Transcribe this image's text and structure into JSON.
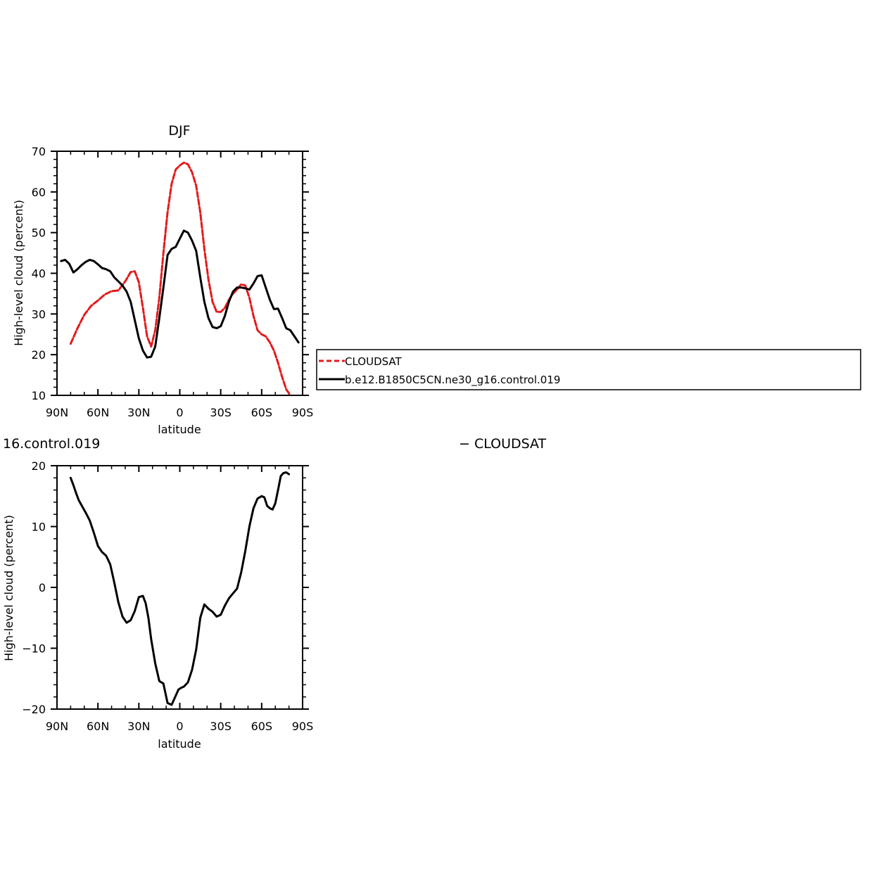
{
  "chart_data": [
    {
      "type": "line",
      "title": "DJF",
      "xlabel": "latitude",
      "ylabel": "High-level cloud (percent)",
      "xlim": [
        90,
        -90
      ],
      "ylim": [
        10,
        70
      ],
      "xticks": [
        90,
        60,
        30,
        0,
        -30,
        -60,
        -90
      ],
      "xtick_labels": [
        "90N",
        "60N",
        "30N",
        "0",
        "30S",
        "60S",
        "90S"
      ],
      "yticks": [
        10,
        20,
        30,
        40,
        50,
        60,
        70
      ],
      "ytick_labels": [
        "10",
        "20",
        "30",
        "40",
        "50",
        "60",
        "70"
      ],
      "series": [
        {
          "name": "CLOUDSAT",
          "color": "#e41a1c",
          "dash": "dashed",
          "x": [
            80,
            75,
            70,
            65,
            60,
            55,
            50,
            45,
            40,
            36,
            33,
            30,
            27,
            24,
            21,
            18,
            15,
            12,
            9,
            6,
            3,
            0,
            -3,
            -6,
            -9,
            -12,
            -15,
            -18,
            -21,
            -24,
            -27,
            -30,
            -33,
            -36,
            -39,
            -42,
            -45,
            -48,
            -51,
            -54,
            -57,
            -60,
            -63,
            -66,
            -69,
            -72,
            -75,
            -78,
            -81
          ],
          "values": [
            22.7,
            26.5,
            29.8,
            32.0,
            33.3,
            34.8,
            35.6,
            35.8,
            38.0,
            40.3,
            40.5,
            37.8,
            31.5,
            24.5,
            22.0,
            26.0,
            34.0,
            45.0,
            55.0,
            62.0,
            65.5,
            66.5,
            67.2,
            66.8,
            64.8,
            61.5,
            55.0,
            46.0,
            38.5,
            33.0,
            30.5,
            30.5,
            31.5,
            33.5,
            35.0,
            36.0,
            37.3,
            37.0,
            34.0,
            29.5,
            26.0,
            25.0,
            24.5,
            23.0,
            21.0,
            18.0,
            14.5,
            11.5,
            9.5
          ]
        },
        {
          "name": "b.e12.B1850C5CN.ne30_g16.control.019",
          "color": "#000000",
          "dash": "solid",
          "x": [
            87,
            84,
            81,
            78,
            75,
            72,
            69,
            66,
            63,
            60,
            57,
            54,
            51,
            48,
            45,
            42,
            39,
            36,
            33,
            30,
            27,
            24,
            21,
            18,
            15,
            12,
            9,
            6,
            3,
            0,
            -3,
            -6,
            -9,
            -12,
            -15,
            -18,
            -21,
            -24,
            -27,
            -30,
            -33,
            -36,
            -39,
            -42,
            -45,
            -48,
            -51,
            -54,
            -57,
            -60,
            -63,
            -66,
            -69,
            -72,
            -75,
            -78,
            -81,
            -84,
            -87
          ],
          "values": [
            43.0,
            43.3,
            42.3,
            40.2,
            41.0,
            42.0,
            42.8,
            43.3,
            43.0,
            42.2,
            41.3,
            41.0,
            40.5,
            39.0,
            38.0,
            37.0,
            35.5,
            33.0,
            28.5,
            24.0,
            21.0,
            19.3,
            19.5,
            22.0,
            29.0,
            36.5,
            44.5,
            46.0,
            46.5,
            48.5,
            50.5,
            50.0,
            48.0,
            45.5,
            39.0,
            33.0,
            29.0,
            26.8,
            26.5,
            27.0,
            29.5,
            33.0,
            35.5,
            36.5,
            36.5,
            36.3,
            36.0,
            37.5,
            39.3,
            39.5,
            36.5,
            33.5,
            31.2,
            31.3,
            29.0,
            26.5,
            26.0,
            24.5,
            23.0
          ]
        }
      ],
      "legend": {
        "placement": "right",
        "entries": [
          "CLOUDSAT",
          "b.e12.B1850C5CN.ne30_g16.control.019"
        ]
      }
    },
    {
      "type": "line",
      "title": "16.control.019",
      "title_right": "− CLOUDSAT",
      "xlabel": "latitude",
      "ylabel": "High-level cloud (percent)",
      "xlim": [
        90,
        -90
      ],
      "ylim": [
        -20,
        20
      ],
      "xticks": [
        90,
        60,
        30,
        0,
        -30,
        -60,
        -90
      ],
      "xtick_labels": [
        "90N",
        "60N",
        "30N",
        "0",
        "30S",
        "60S",
        "90S"
      ],
      "yticks": [
        -20,
        -10,
        0,
        10,
        20
      ],
      "ytick_labels": [
        "−20",
        "−10",
        "0",
        "10",
        "20"
      ],
      "series": [
        {
          "color": "#000000",
          "dash": "solid",
          "x": [
            80,
            78,
            76,
            74,
            72,
            69,
            66,
            63,
            60,
            57,
            54,
            51,
            48,
            45,
            42,
            39,
            36,
            33,
            30,
            27,
            25,
            23,
            21,
            18,
            15,
            12,
            9,
            6,
            3,
            1,
            -1,
            -3,
            -6,
            -9,
            -12,
            -15,
            -18,
            -21,
            -24,
            -27,
            -30,
            -33,
            -36,
            -39,
            -42,
            -45,
            -48,
            -51,
            -54,
            -57,
            -60,
            -62,
            -64,
            -66,
            -68,
            -70,
            -72,
            -74,
            -76,
            -78,
            -80
          ],
          "values": [
            18.0,
            16.8,
            15.5,
            14.3,
            13.5,
            12.3,
            11.0,
            9.0,
            6.8,
            5.8,
            5.2,
            3.8,
            0.8,
            -2.5,
            -4.8,
            -5.8,
            -5.4,
            -3.9,
            -1.6,
            -1.4,
            -2.6,
            -5.0,
            -8.5,
            -12.5,
            -15.4,
            -15.8,
            -19.0,
            -19.3,
            -17.8,
            -16.8,
            -16.5,
            -16.3,
            -15.6,
            -13.5,
            -10.2,
            -5.0,
            -2.8,
            -3.5,
            -4.0,
            -4.8,
            -4.5,
            -3.0,
            -1.8,
            -1.0,
            -0.2,
            2.5,
            6.0,
            10.0,
            13.0,
            14.6,
            15.0,
            14.8,
            13.4,
            13.0,
            12.8,
            13.8,
            16.0,
            18.3,
            18.8,
            18.9,
            18.6
          ]
        }
      ]
    }
  ]
}
